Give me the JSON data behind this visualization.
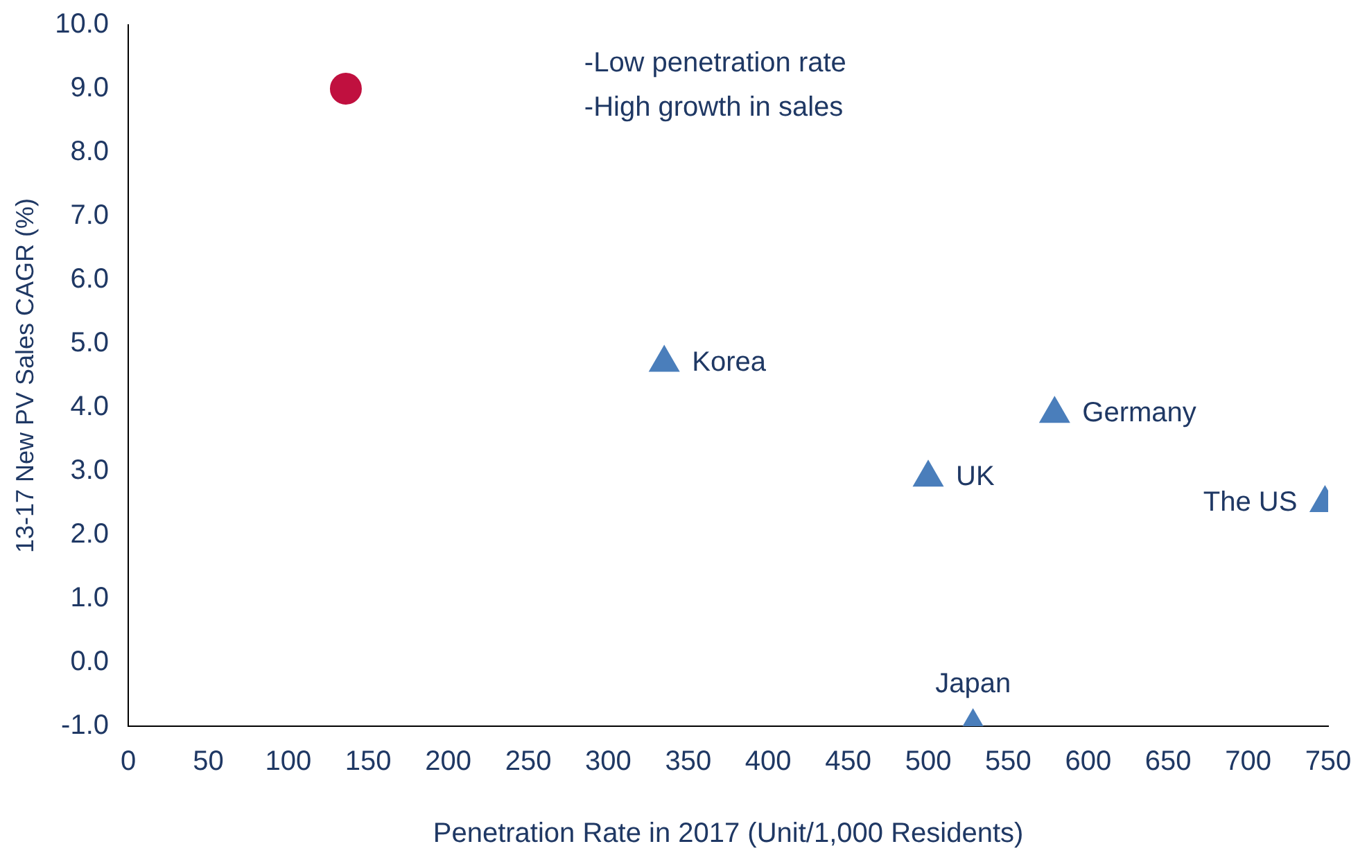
{
  "chart_data": {
    "type": "scatter",
    "xlabel": "Penetration Rate in 2017 (Unit/1,000 Residents)",
    "ylabel": "13-17 New PV Sales CAGR (%)",
    "series": [
      {
        "color": "#c0103f",
        "marker": "circle",
        "x": [
          136
        ],
        "values": [
          9.0
        ]
      },
      {
        "color": "#4a7ebb",
        "marker": "triangle",
        "x": [
          335,
          579,
          500,
          748,
          528
        ],
        "values": [
          4.7,
          3.9,
          2.9,
          2.5,
          -1.0
        ]
      }
    ],
    "xlim": [
      0,
      750
    ],
    "xticks": [
      0,
      50,
      100,
      150,
      200,
      250,
      300,
      350,
      400,
      450,
      500,
      550,
      600,
      650,
      700,
      750
    ],
    "ylim": [
      -1,
      10
    ],
    "yticks": [
      {
        "value": -1,
        "label": "-1.0"
      },
      {
        "value": 0,
        "label": "0.0"
      },
      {
        "value": 1,
        "label": "1.0"
      },
      {
        "value": 2,
        "label": "2.0"
      },
      {
        "value": 3,
        "label": "3.0"
      },
      {
        "value": 4,
        "label": "4.0"
      },
      {
        "value": 5,
        "label": "5.0"
      },
      {
        "value": 6,
        "label": "6.0"
      },
      {
        "value": 7,
        "label": "7.0"
      },
      {
        "value": 8,
        "label": "8.0"
      },
      {
        "value": 9,
        "label": "9.0"
      },
      {
        "value": 10,
        "label": "10.0"
      }
    ],
    "grid": false,
    "legend": false,
    "annotations": [
      {
        "text": "Korea",
        "x": 335,
        "y": 4.7
      },
      {
        "text": "Germany",
        "x": 579,
        "y": 3.9
      },
      {
        "text": "UK",
        "x": 500,
        "y": 2.9
      },
      {
        "text": "The US",
        "x": 748,
        "y": 2.5
      },
      {
        "text": "Japan",
        "x": 528,
        "y": -1.0
      },
      "-Low penetration rate",
      "-High growth in sales"
    ]
  }
}
